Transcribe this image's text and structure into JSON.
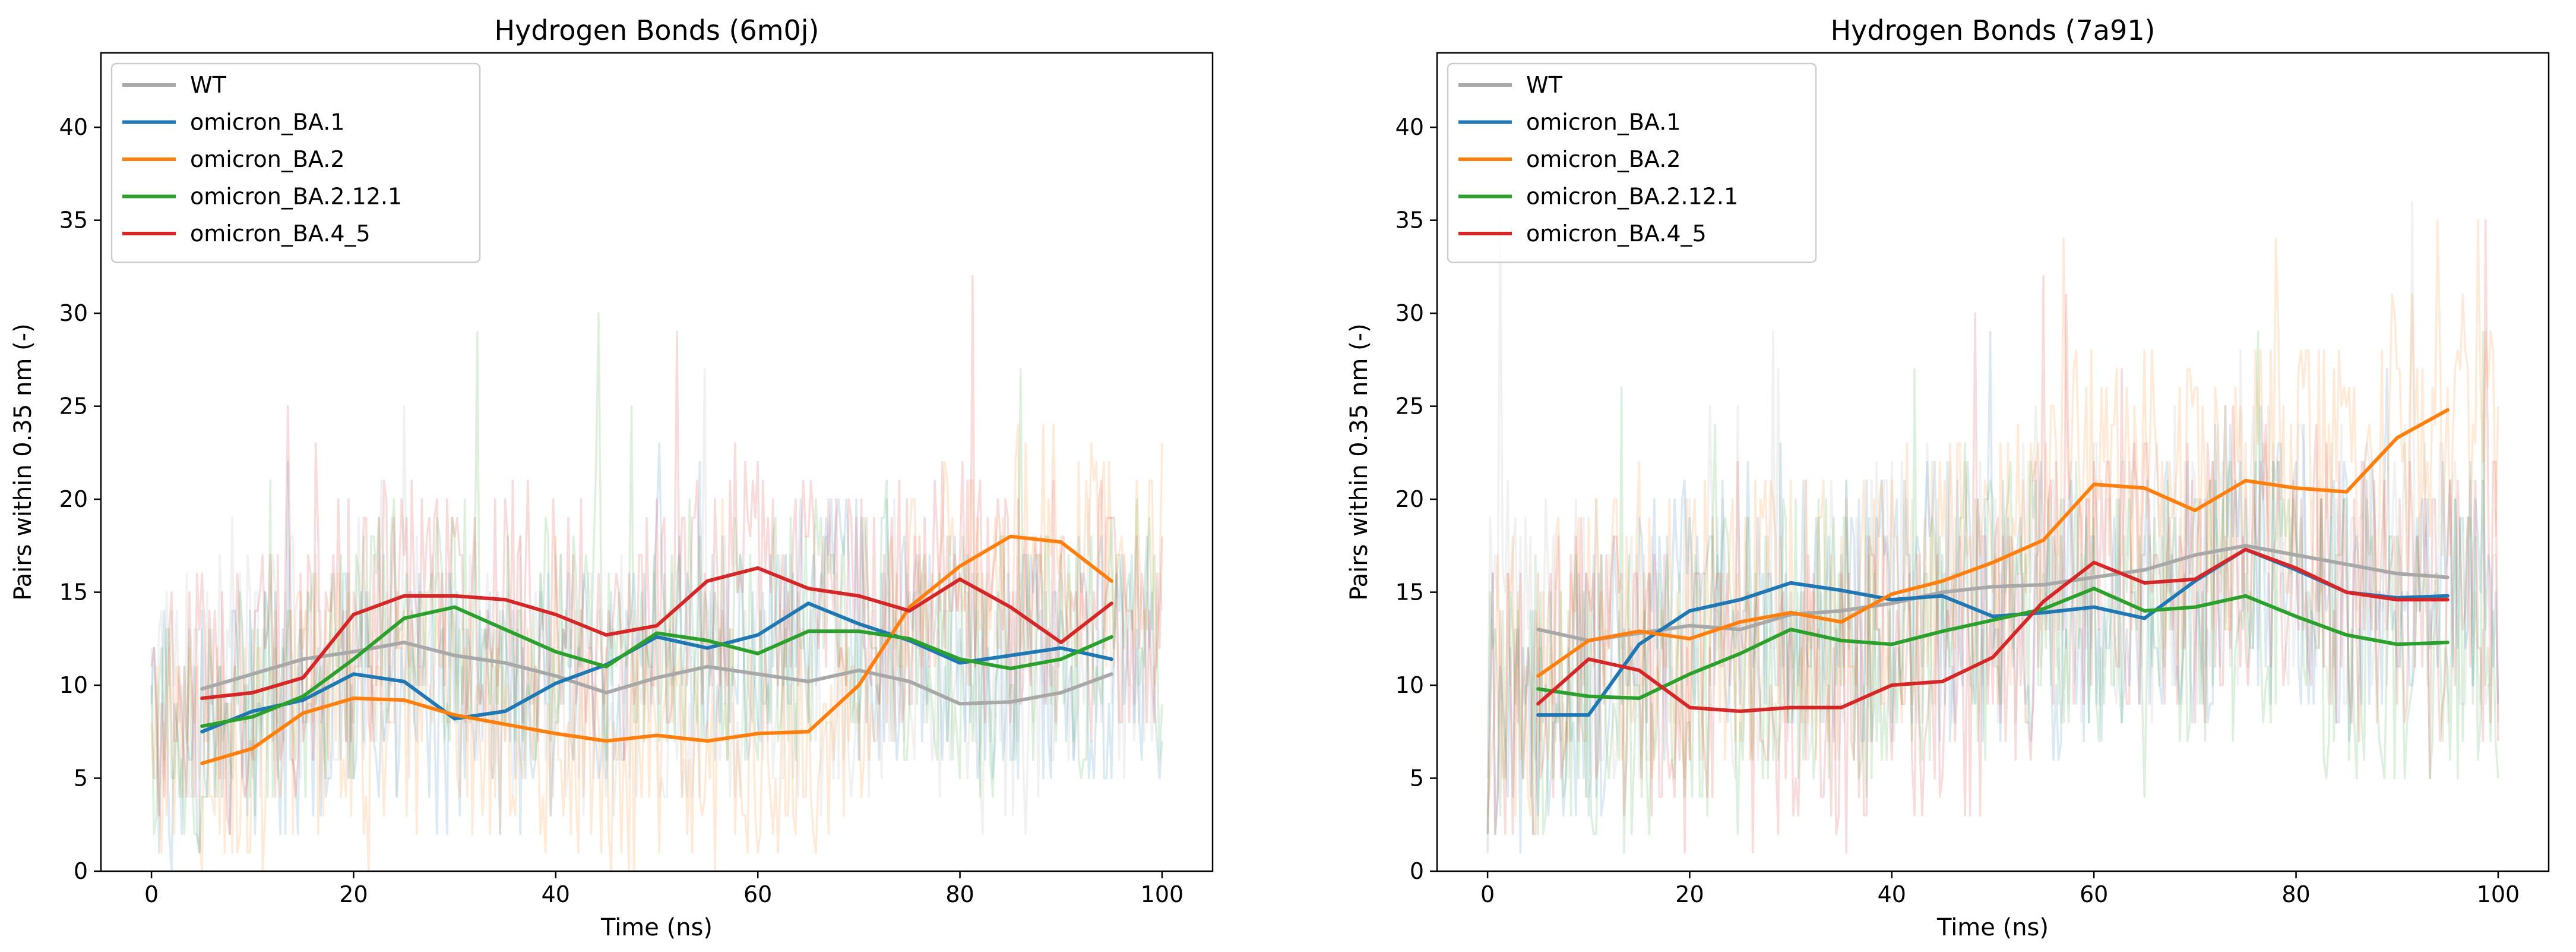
{
  "chart_data": [
    {
      "type": "line",
      "title": "Hydrogen Bonds (6m0j)",
      "xlabel": "Time (ns)",
      "ylabel": "Pairs within 0.35 nm (-)",
      "xlim": [
        -5,
        105
      ],
      "ylim": [
        0,
        44
      ],
      "xticks": [
        "0",
        "20",
        "40",
        "60",
        "80",
        "100"
      ],
      "yticks": [
        "0",
        "5",
        "10",
        "15",
        "20",
        "25",
        "30",
        "35",
        "40"
      ],
      "grid": false,
      "legend_position": "upper left",
      "raw_noise_amplitude": 7,
      "x": [
        5,
        10,
        15,
        20,
        25,
        30,
        35,
        40,
        45,
        50,
        55,
        60,
        65,
        70,
        75,
        80,
        85,
        90,
        95
      ],
      "series": [
        {
          "name": "WT",
          "color": "#a8a8a8",
          "values": [
            9.8,
            10.6,
            11.4,
            11.8,
            12.3,
            11.6,
            11.2,
            10.5,
            9.6,
            10.4,
            11.0,
            10.6,
            10.2,
            10.8,
            10.2,
            9.0,
            9.1,
            9.6,
            10.6
          ]
        },
        {
          "name": "omicron_BA.1",
          "color": "#1f77b4",
          "values": [
            7.5,
            8.6,
            9.2,
            10.6,
            10.2,
            8.2,
            8.6,
            10.1,
            11.1,
            12.6,
            12.0,
            12.7,
            14.4,
            13.3,
            12.4,
            11.2,
            11.6,
            12.0,
            11.4
          ]
        },
        {
          "name": "omicron_BA.2",
          "color": "#ff7f0e",
          "values": [
            5.8,
            6.6,
            8.5,
            9.3,
            9.2,
            8.4,
            7.9,
            7.4,
            7.0,
            7.3,
            7.0,
            7.4,
            7.5,
            10.0,
            14.2,
            16.4,
            18.0,
            17.7,
            15.6
          ]
        },
        {
          "name": "omicron_BA.2.12.1",
          "color": "#2ca02c",
          "values": [
            7.8,
            8.3,
            9.4,
            11.4,
            13.6,
            14.2,
            13.0,
            11.8,
            11.0,
            12.8,
            12.4,
            11.7,
            12.9,
            12.9,
            12.5,
            11.4,
            10.9,
            11.4,
            12.6
          ]
        },
        {
          "name": "omicron_BA.4_5",
          "color": "#d62728",
          "values": [
            9.3,
            9.6,
            10.4,
            13.8,
            14.8,
            14.8,
            14.6,
            13.8,
            12.7,
            13.2,
            15.6,
            16.3,
            15.2,
            14.8,
            14.0,
            15.7,
            14.2,
            12.3,
            14.4
          ]
        }
      ]
    },
    {
      "type": "line",
      "title": "Hydrogen Bonds (7a91)",
      "xlabel": "Time (ns)",
      "ylabel": "Pairs within 0.35 nm (-)",
      "xlim": [
        -5,
        105
      ],
      "ylim": [
        0,
        44
      ],
      "xticks": [
        "0",
        "20",
        "40",
        "60",
        "80",
        "100"
      ],
      "yticks": [
        "0",
        "5",
        "10",
        "15",
        "20",
        "25",
        "30",
        "35",
        "40"
      ],
      "grid": false,
      "legend_position": "upper left",
      "raw_noise_amplitude": 8,
      "x": [
        5,
        10,
        15,
        20,
        25,
        30,
        35,
        40,
        45,
        50,
        55,
        60,
        65,
        70,
        75,
        80,
        85,
        90,
        95
      ],
      "series": [
        {
          "name": "WT",
          "color": "#a8a8a8",
          "values": [
            13.0,
            12.4,
            12.8,
            13.2,
            13.0,
            13.8,
            14.0,
            14.4,
            15.0,
            15.3,
            15.4,
            15.8,
            16.2,
            17.0,
            17.5,
            17.0,
            16.5,
            16.0,
            15.8
          ]
        },
        {
          "name": "omicron_BA.1",
          "color": "#1f77b4",
          "values": [
            8.4,
            8.4,
            12.2,
            14.0,
            14.6,
            15.5,
            15.1,
            14.6,
            14.8,
            13.7,
            13.9,
            14.2,
            13.6,
            15.6,
            17.3,
            16.2,
            15.0,
            14.7,
            14.8
          ]
        },
        {
          "name": "omicron_BA.2",
          "color": "#ff7f0e",
          "values": [
            10.5,
            12.4,
            12.9,
            12.5,
            13.4,
            13.9,
            13.4,
            14.9,
            15.6,
            16.6,
            17.8,
            20.8,
            20.6,
            19.4,
            21.0,
            20.6,
            20.4,
            23.3,
            24.8
          ]
        },
        {
          "name": "omicron_BA.2.12.1",
          "color": "#2ca02c",
          "values": [
            9.8,
            9.4,
            9.3,
            10.6,
            11.7,
            13.0,
            12.4,
            12.2,
            12.9,
            13.5,
            14.1,
            15.2,
            14.0,
            14.2,
            14.8,
            13.7,
            12.7,
            12.2,
            12.3
          ]
        },
        {
          "name": "omicron_BA.4_5",
          "color": "#d62728",
          "values": [
            9.0,
            11.4,
            10.8,
            8.8,
            8.6,
            8.8,
            8.8,
            10.0,
            10.2,
            11.5,
            14.5,
            16.6,
            15.5,
            15.7,
            17.3,
            16.3,
            15.0,
            14.6,
            14.6
          ]
        }
      ]
    }
  ]
}
